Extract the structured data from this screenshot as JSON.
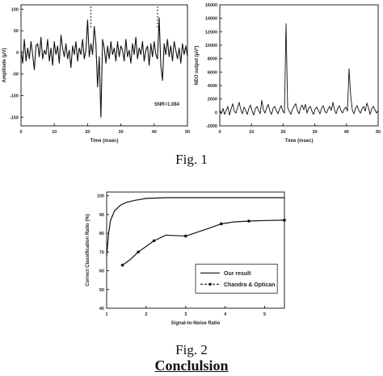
{
  "fig1_caption": "Fig. 1",
  "fig2_caption": "Fig. 2",
  "section_heading": "Conclulsion",
  "chart_data": [
    {
      "type": "line",
      "xlabel": "Time (msec)",
      "ylabel": "Amplitude (μV)",
      "x_ticks": [
        "0",
        "10",
        "20",
        "30",
        "40",
        "50"
      ],
      "y_ticks": [
        "100",
        "50",
        "0",
        "-50",
        "-100",
        "-150"
      ],
      "xlim": [
        0,
        50
      ],
      "ylim": [
        -170,
        110
      ],
      "annotation": "SNR=1.084",
      "markers_x": [
        21,
        41
      ],
      "series": [
        {
          "values": [
            5,
            -25,
            30,
            -20,
            10,
            -15,
            25,
            -5,
            -40,
            15,
            20,
            -10,
            35,
            -15,
            5,
            -5,
            30,
            -20,
            10,
            -30,
            25,
            -5,
            15,
            -25,
            40,
            10,
            -10,
            20,
            -15,
            5,
            -35,
            15,
            -5,
            25,
            -20,
            10,
            -5,
            30,
            -15,
            5,
            75,
            -10,
            20,
            -5,
            60,
            20,
            -80,
            -10,
            -150,
            30,
            10,
            -25,
            15,
            -15,
            25,
            -5,
            10,
            -20,
            25,
            -10,
            15,
            5,
            -20,
            30,
            -10,
            5,
            -25,
            20,
            -5,
            35,
            -15,
            10,
            -5,
            25,
            -20,
            5,
            15,
            -30,
            20,
            -10,
            25,
            -5,
            -15,
            80,
            -30,
            -65,
            20,
            -5,
            30,
            -10,
            15,
            -20,
            25,
            5,
            -15,
            10,
            -25,
            20,
            -5,
            15,
            -10
          ]
        }
      ]
    },
    {
      "type": "line",
      "xlabel": "Time (msec)",
      "ylabel": "NEO output (μV²)",
      "x_ticks": [
        "0",
        "10",
        "20",
        "30",
        "40",
        "50"
      ],
      "y_ticks": [
        "16000",
        "14000",
        "12000",
        "10000",
        "8000",
        "6000",
        "4000",
        "2000",
        "0",
        "-2000"
      ],
      "xlim": [
        0,
        50
      ],
      "ylim": [
        -2000,
        16000
      ],
      "series": [
        {
          "values": [
            400,
            -200,
            600,
            -300,
            300,
            900,
            -400,
            500,
            1300,
            200,
            -100,
            700,
            1500,
            400,
            -200,
            800,
            300,
            -300,
            600,
            1100,
            200,
            -400,
            500,
            900,
            300,
            -200,
            1800,
            400,
            -100,
            700,
            1200,
            200,
            -300,
            600,
            900,
            300,
            -200,
            500,
            1000,
            200,
            -100,
            13200,
            700,
            200,
            -300,
            500,
            900,
            1300,
            300,
            -200,
            700,
            1100,
            400,
            1200,
            -100,
            600,
            900,
            200,
            -300,
            500,
            800,
            300,
            -200,
            600,
            1000,
            200,
            -100,
            500,
            900,
            300,
            1500,
            400,
            -200,
            600,
            1000,
            300,
            -100,
            500,
            800,
            200,
            6500,
            2500,
            400,
            -200,
            600,
            1000,
            300,
            -100,
            500,
            900,
            200,
            1400,
            700,
            -300,
            500,
            900,
            400,
            -100,
            300
          ]
        }
      ]
    },
    {
      "type": "line",
      "xlabel": "Signal-to-Noise Ratio",
      "ylabel": "Correct Classification Ratio (%)",
      "x_ticks": [
        "1",
        "2",
        "3",
        "4",
        "5"
      ],
      "y_ticks": [
        "100",
        "90",
        "80",
        "70",
        "60",
        "50",
        "40"
      ],
      "xlim": [
        1,
        5.5
      ],
      "ylim": [
        40,
        102
      ],
      "legend": [
        "Our result",
        "Chandra & Optican"
      ],
      "legend_position": "bottom-right",
      "series": [
        {
          "name": "Our result",
          "x": [
            1.0,
            1.05,
            1.1,
            1.2,
            1.35,
            1.5,
            1.7,
            2.0,
            2.5,
            3.0,
            3.5,
            4.0,
            4.5,
            5.0,
            5.5
          ],
          "y": [
            68,
            80,
            87,
            92,
            95,
            96.5,
            97.5,
            98.6,
            99,
            99,
            99,
            99,
            99,
            99,
            99
          ]
        },
        {
          "name": "Chandra & Optican",
          "x": [
            1.4,
            1.6,
            1.8,
            2.0,
            2.2,
            2.5,
            3.0,
            3.5,
            3.9,
            4.2,
            4.6,
            5.0,
            5.5
          ],
          "y": [
            63,
            66,
            70,
            73,
            76,
            79,
            78.5,
            82,
            85,
            86,
            86.5,
            86.8,
            87
          ]
        }
      ]
    }
  ]
}
